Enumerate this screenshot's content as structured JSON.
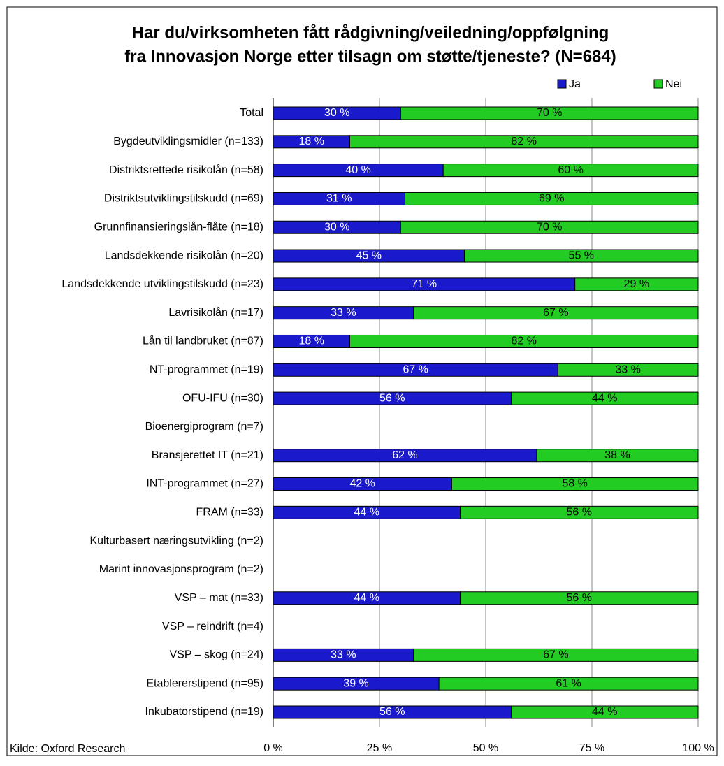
{
  "chart_data": {
    "type": "stacked-bar-horizontal",
    "title": [
      "Har du/virksomheten fått rådgivning/veiledning/oppfølgning",
      "fra Innovasjon Norge etter tilsagn om støtte/tjeneste? (N=684)"
    ],
    "source": "Kilde: Oxford Research",
    "categories": [
      "Total",
      "Bygdeutviklingsmidler (n=133)",
      "Distriktsrettede risikolån (n=58)",
      "Distriktsutviklingstilskudd (n=69)",
      "Grunnfinansieringslån-flåte (n=18)",
      "Landsdekkende risikolån (n=20)",
      "Landsdekkende utviklingstilskudd (n=23)",
      "Lavrisikolån (n=17)",
      "Lån til landbruket (n=87)",
      "NT-programmet (n=19)",
      "OFU-IFU (n=30)",
      "Bioenergiprogram (n=7)",
      "Bransjerettet IT (n=21)",
      "INT-programmet (n=27)",
      "FRAM (n=33)",
      "Kulturbasert næringsutvikling (n=2)",
      "Marint innovasjonsprogram (n=2)",
      "VSP – mat (n=33)",
      "VSP – reindrift (n=4)",
      "VSP – skog (n=24)",
      "Etablererstipend (n=95)",
      "Inkubatorstipend (n=19)"
    ],
    "series": [
      {
        "name": "Ja",
        "color": "#1a1acc",
        "label_color": "#ffffff",
        "values": [
          30,
          18,
          40,
          31,
          30,
          45,
          71,
          33,
          18,
          67,
          56,
          null,
          62,
          42,
          44,
          null,
          null,
          44,
          null,
          33,
          39,
          56
        ],
        "value_labels": [
          "30 %",
          "18 %",
          "40 %",
          "31 %",
          "30 %",
          "45 %",
          "71 %",
          "33 %",
          "18 %",
          "67 %",
          "56 %",
          null,
          "62 %",
          "42 %",
          "44 %",
          null,
          null,
          "44 %",
          null,
          "33 %",
          "39 %",
          "56 %"
        ]
      },
      {
        "name": "Nei",
        "color": "#22cc22",
        "label_color": "#000000",
        "values": [
          70,
          82,
          60,
          69,
          70,
          55,
          29,
          67,
          82,
          33,
          44,
          null,
          38,
          58,
          56,
          null,
          null,
          56,
          null,
          67,
          61,
          44
        ],
        "value_labels": [
          "70 %",
          "82 %",
          "60 %",
          "69 %",
          "70 %",
          "55 %",
          "29 %",
          "67 %",
          "82 %",
          "33 %",
          "44 %",
          null,
          "38 %",
          "58 %",
          "56 %",
          null,
          null,
          "56 %",
          null,
          "67 %",
          "61 %",
          "44 %"
        ]
      }
    ],
    "xlim": [
      0,
      100
    ],
    "xticks": [
      {
        "value": 0,
        "label": "0 %"
      },
      {
        "value": 25,
        "label": "25 %"
      },
      {
        "value": 50,
        "label": "50 %"
      },
      {
        "value": 75,
        "label": "75 %"
      },
      {
        "value": 100,
        "label": "100 %"
      }
    ],
    "grid": true,
    "legend": "top-right"
  }
}
